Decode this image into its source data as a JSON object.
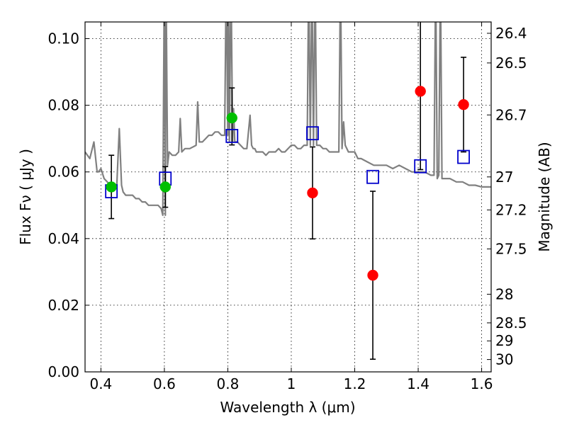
{
  "chart_data": {
    "type": "scatter",
    "xlabel": "Wavelength  λ (μm)",
    "ylabel": "Flux  Fν  ( μJy )",
    "y2label": "Magnitude (AB)",
    "xlim": [
      0.35,
      1.63
    ],
    "ylim": [
      0.0,
      0.105
    ],
    "grid": true,
    "x_ticks": [
      0.4,
      0.6,
      0.8,
      1.0,
      1.2,
      1.4,
      1.6
    ],
    "x_tick_labels": [
      "0.4",
      "0.6",
      "0.8",
      "1",
      "1.2",
      "1.4",
      "1.6"
    ],
    "y_ticks": [
      0.0,
      0.02,
      0.04,
      0.06,
      0.08,
      0.1
    ],
    "y_tick_labels": [
      "0.00",
      "0.02",
      "0.04",
      "0.06",
      "0.08",
      "0.10"
    ],
    "y2_ticks": [
      {
        "label": "26.4",
        "flux": 0.1016
      },
      {
        "label": "26.5",
        "flux": 0.0927
      },
      {
        "label": "26.7",
        "flux": 0.0771
      },
      {
        "label": "27",
        "flux": 0.0585
      },
      {
        "label": "27.2",
        "flux": 0.0486
      },
      {
        "label": "27.5",
        "flux": 0.0369
      },
      {
        "label": "28",
        "flux": 0.0233
      },
      {
        "label": "28.5",
        "flux": 0.0147
      },
      {
        "label": "29",
        "flux": 0.0093
      },
      {
        "label": "30",
        "flux": 0.0037
      }
    ],
    "model_spectrum": {
      "color": "#808080",
      "x": [
        0.35,
        0.365,
        0.378,
        0.388,
        0.392,
        0.4,
        0.41,
        0.42,
        0.43,
        0.44,
        0.45,
        0.458,
        0.465,
        0.47,
        0.478,
        0.49,
        0.5,
        0.51,
        0.52,
        0.53,
        0.54,
        0.55,
        0.56,
        0.57,
        0.58,
        0.59,
        0.595,
        0.6,
        0.603,
        0.605,
        0.61,
        0.615,
        0.625,
        0.635,
        0.645,
        0.65,
        0.655,
        0.665,
        0.68,
        0.7,
        0.705,
        0.71,
        0.72,
        0.73,
        0.74,
        0.75,
        0.76,
        0.77,
        0.78,
        0.79,
        0.795,
        0.8,
        0.802,
        0.805,
        0.81,
        0.815,
        0.818,
        0.822,
        0.83,
        0.84,
        0.85,
        0.86,
        0.87,
        0.875,
        0.88,
        0.885,
        0.89,
        0.9,
        0.91,
        0.92,
        0.93,
        0.94,
        0.95,
        0.96,
        0.97,
        0.98,
        0.99,
        1.0,
        1.01,
        1.02,
        1.03,
        1.04,
        1.05,
        1.055,
        1.06,
        1.065,
        1.07,
        1.075,
        1.08,
        1.09,
        1.1,
        1.11,
        1.12,
        1.13,
        1.14,
        1.15,
        1.155,
        1.16,
        1.165,
        1.17,
        1.18,
        1.19,
        1.2,
        1.21,
        1.22,
        1.24,
        1.26,
        1.28,
        1.3,
        1.32,
        1.34,
        1.36,
        1.38,
        1.4,
        1.42,
        1.44,
        1.45,
        1.455,
        1.46,
        1.465,
        1.47,
        1.475,
        1.48,
        1.5,
        1.52,
        1.54,
        1.56,
        1.58,
        1.6,
        1.63
      ],
      "y": [
        0.066,
        0.064,
        0.069,
        0.06,
        0.06,
        0.061,
        0.058,
        0.057,
        0.056,
        0.055,
        0.056,
        0.073,
        0.056,
        0.054,
        0.053,
        0.053,
        0.053,
        0.052,
        0.052,
        0.051,
        0.051,
        0.05,
        0.05,
        0.05,
        0.05,
        0.049,
        0.047,
        0.12,
        0.047,
        0.12,
        0.062,
        0.066,
        0.065,
        0.065,
        0.066,
        0.076,
        0.066,
        0.067,
        0.067,
        0.068,
        0.081,
        0.069,
        0.069,
        0.07,
        0.071,
        0.071,
        0.072,
        0.072,
        0.071,
        0.071,
        0.12,
        0.071,
        0.12,
        0.069,
        0.12,
        0.069,
        0.079,
        0.069,
        0.069,
        0.068,
        0.067,
        0.067,
        0.077,
        0.068,
        0.067,
        0.067,
        0.066,
        0.066,
        0.066,
        0.065,
        0.066,
        0.066,
        0.066,
        0.067,
        0.066,
        0.066,
        0.067,
        0.068,
        0.068,
        0.067,
        0.067,
        0.068,
        0.068,
        0.12,
        0.068,
        0.12,
        0.068,
        0.12,
        0.068,
        0.068,
        0.067,
        0.067,
        0.066,
        0.066,
        0.066,
        0.066,
        0.12,
        0.067,
        0.075,
        0.068,
        0.066,
        0.066,
        0.066,
        0.064,
        0.064,
        0.063,
        0.062,
        0.062,
        0.062,
        0.061,
        0.062,
        0.061,
        0.06,
        0.06,
        0.06,
        0.059,
        0.059,
        0.12,
        0.058,
        0.059,
        0.12,
        0.058,
        0.058,
        0.058,
        0.057,
        0.057,
        0.056,
        0.056,
        0.0555,
        0.0555
      ]
    },
    "series": [
      {
        "marker": "circle",
        "color": "#00bf00",
        "x": [
          0.433,
          0.603,
          0.813
        ],
        "y": [
          0.0555,
          0.0555,
          0.0762
        ],
        "err_low": [
          0.0095,
          0.0061,
          0.0081
        ],
        "err_high": [
          0.0095,
          0.0061,
          0.009
        ]
      },
      {
        "marker": "circle",
        "color": "#ff0000",
        "x": [
          1.067,
          1.257,
          1.407,
          1.543
        ],
        "y": [
          0.0537,
          0.029,
          0.0842,
          0.0802
        ],
        "err_low": [
          0.0138,
          0.0252,
          0.0235,
          0.0142
        ],
        "err_high": [
          0.0138,
          0.0252,
          0.0235,
          0.0142
        ]
      },
      {
        "marker": "open-square",
        "color": "#0000cc",
        "x": [
          0.433,
          0.603,
          0.813,
          1.067,
          1.257,
          1.407,
          1.543
        ],
        "y": [
          0.0542,
          0.058,
          0.0708,
          0.0716,
          0.0585,
          0.0617,
          0.0645
        ]
      }
    ]
  }
}
